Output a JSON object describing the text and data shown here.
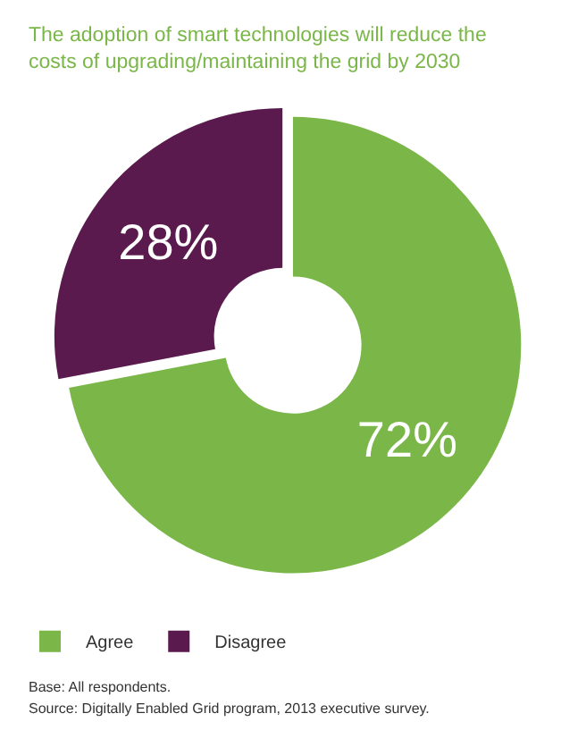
{
  "chart_data": {
    "type": "donut",
    "title": "The adoption of smart technologies will reduce the costs of upgrading/maintaining the grid by 2030",
    "categories": [
      "Agree",
      "Disagree"
    ],
    "values": [
      72,
      28
    ],
    "value_labels": [
      "72%",
      "28%"
    ],
    "colors": [
      "#7ab648",
      "#5b1a4e"
    ],
    "legend": "bottom left",
    "annotations": [
      "Base: All respondents.",
      "Source: Digitally Enabled Grid program, 2013 executive survey."
    ]
  }
}
